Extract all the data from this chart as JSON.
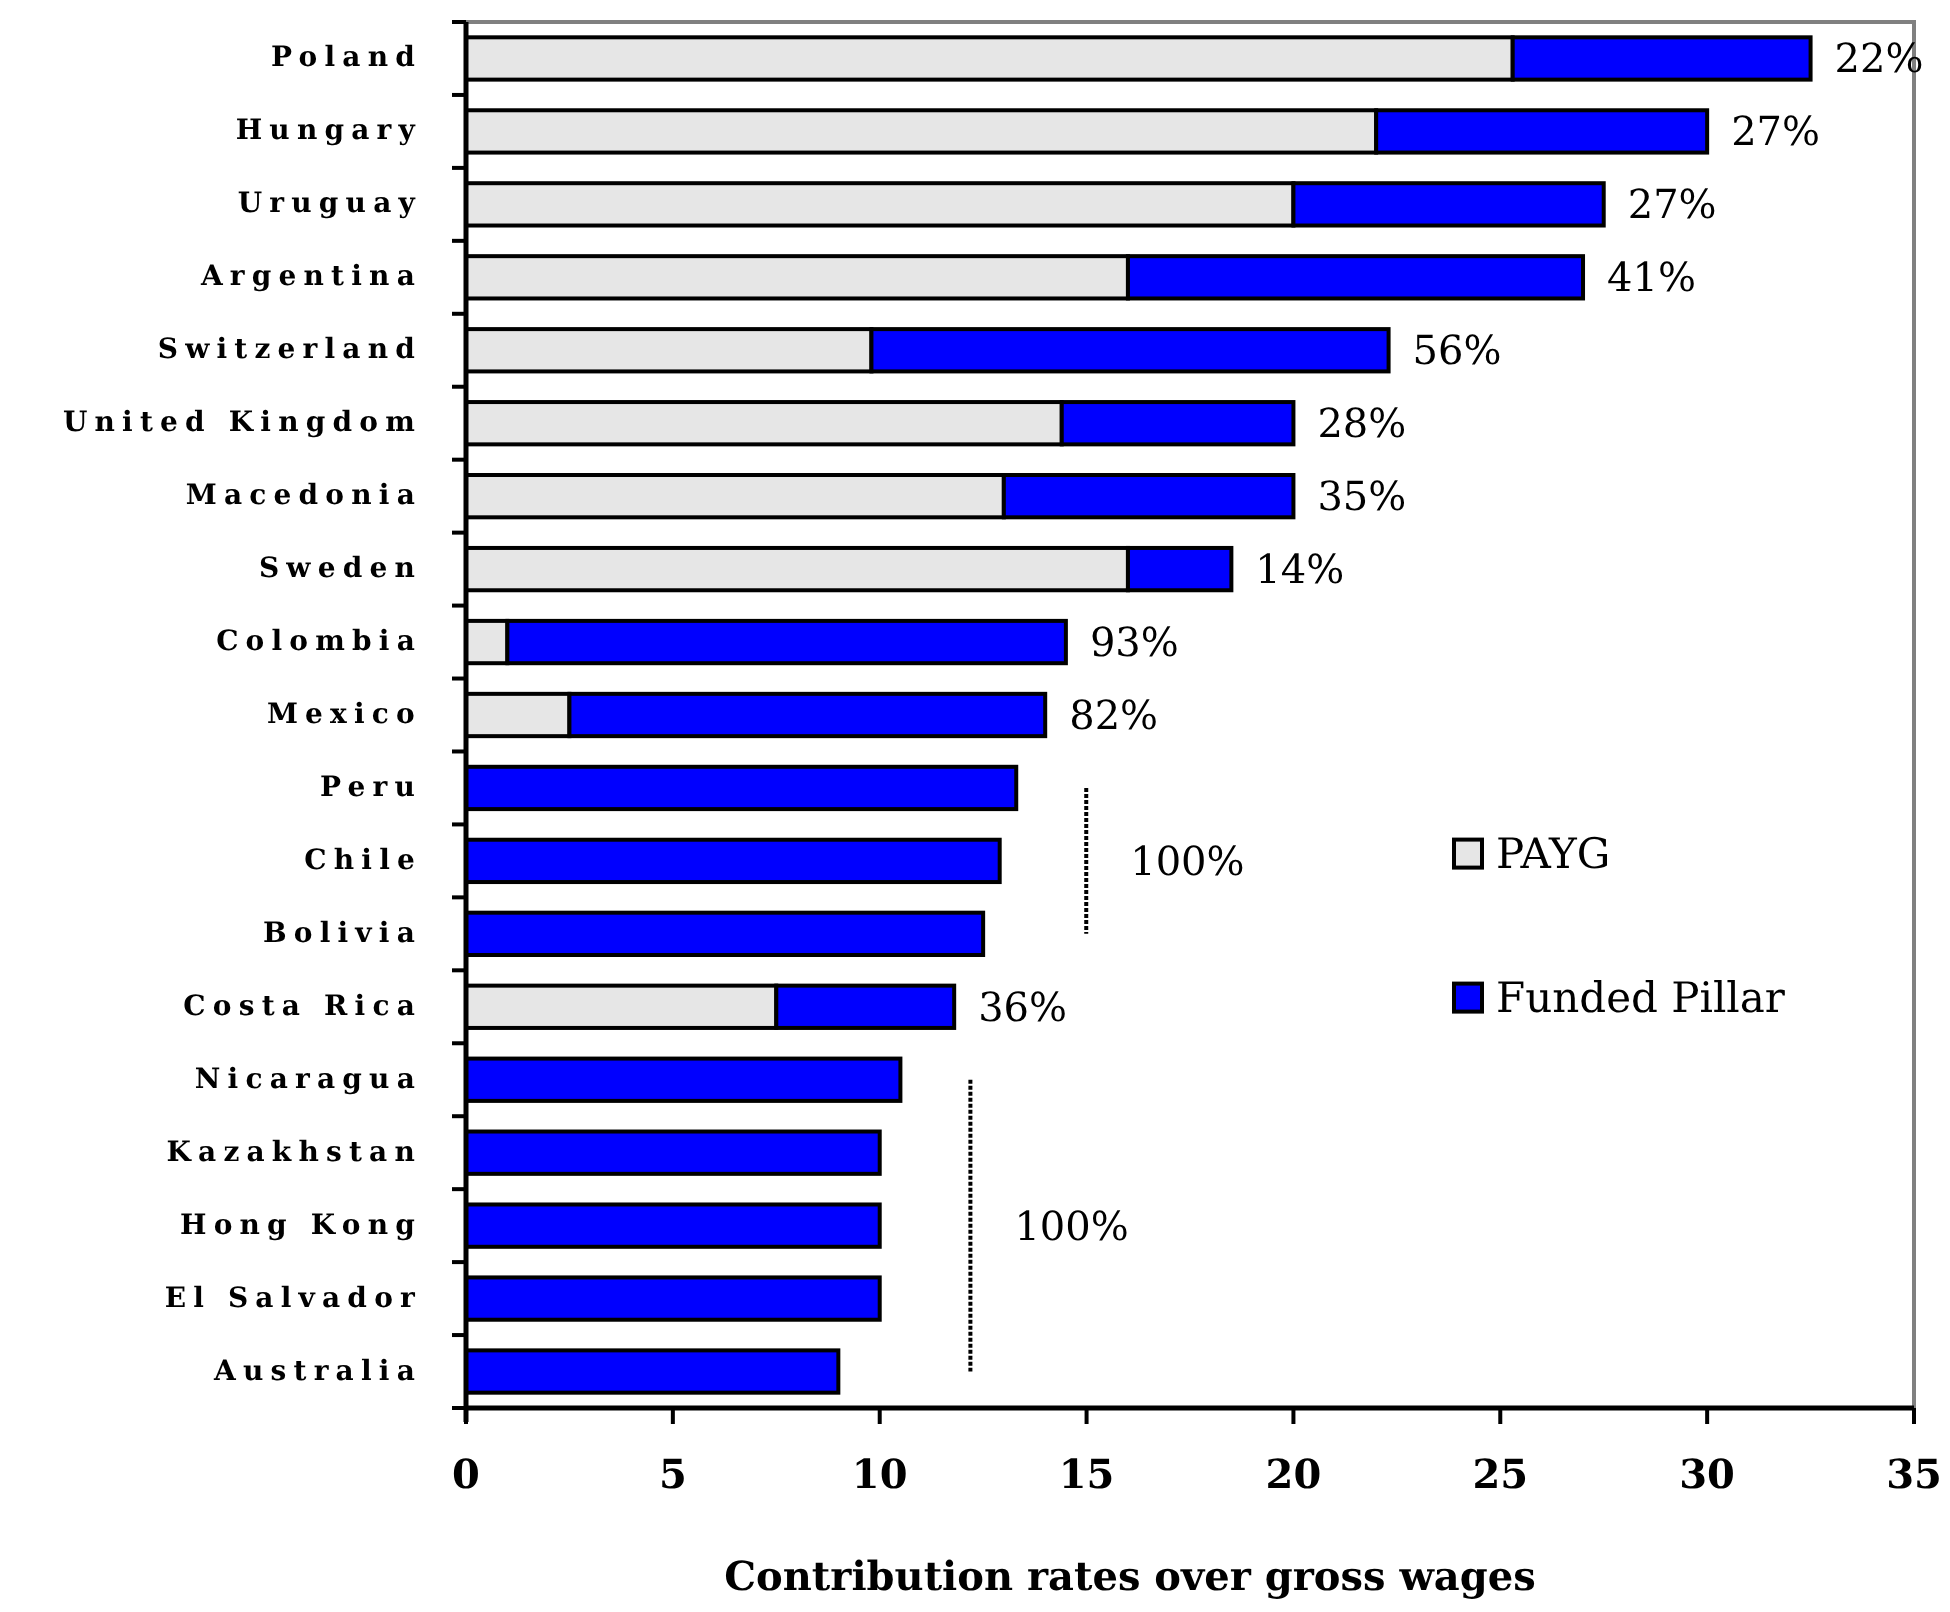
{
  "chart_data": {
    "type": "bar",
    "orientation": "horizontal",
    "stacked": true,
    "categories": [
      "Poland",
      "Hungary",
      "Uruguay",
      "Argentina",
      "Switzerland",
      "United Kingdom",
      "Macedonia",
      "Sweden",
      "Colombia",
      "Mexico",
      "Peru",
      "Chile",
      "Bolivia",
      "Costa Rica",
      "Nicaragua",
      "Kazakhstan",
      "Hong Kong",
      "El Salvador",
      "Australia"
    ],
    "series": [
      {
        "name": "PAYG",
        "color": "#e6e6e6",
        "values": [
          25.3,
          22,
          20,
          16,
          9.8,
          14.4,
          13,
          16,
          1,
          2.5,
          null,
          null,
          null,
          7.5,
          null,
          null,
          null,
          null,
          null
        ]
      },
      {
        "name": "Funded Pillar",
        "color": "#0000ff",
        "values": [
          7.2,
          8,
          7.5,
          11,
          12.5,
          5.6,
          7,
          2.5,
          13.5,
          11.5,
          13.3,
          12.9,
          12.5,
          4.3,
          10.5,
          10,
          10,
          10,
          9
        ]
      }
    ],
    "xlim": [
      0,
      35
    ],
    "xticks": [
      0,
      5,
      10,
      15,
      20,
      25,
      30,
      35
    ],
    "xlabel": "Contribution rates over gross wages",
    "legend": "right",
    "annotations": [
      {
        "text": "22%",
        "x": 32.5,
        "y": "Poland"
      },
      {
        "text": "27%",
        "x": 30,
        "y": "Hungary"
      },
      {
        "text": "27%",
        "x": 27.5,
        "y": "Uruguay"
      },
      {
        "text": "41%",
        "x": 27,
        "y": "Argentina"
      },
      {
        "text": "56%",
        "x": 22.3,
        "y": "Switzerland"
      },
      {
        "text": "28%",
        "x": 20,
        "y": "United Kingdom"
      },
      {
        "text": "35%",
        "x": 20,
        "y": "Macedonia"
      },
      {
        "text": "14%",
        "x": 18.5,
        "y": "Sweden"
      },
      {
        "text": "93%",
        "x": 14.5,
        "y": "Colombia"
      },
      {
        "text": "82%",
        "x": 14,
        "y": "Mexico"
      },
      {
        "text": "36%",
        "x": 11.8,
        "y": "Costa Rica"
      },
      "100%",
      "100%"
    ]
  }
}
